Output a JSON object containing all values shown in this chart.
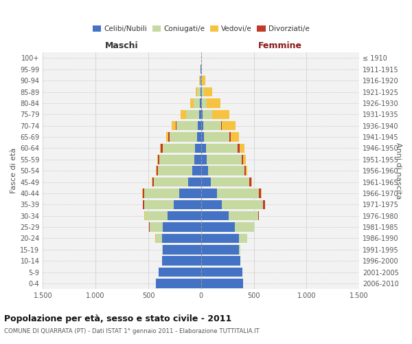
{
  "age_groups": [
    "0-4",
    "5-9",
    "10-14",
    "15-19",
    "20-24",
    "25-29",
    "30-34",
    "35-39",
    "40-44",
    "45-49",
    "50-54",
    "55-59",
    "60-64",
    "65-69",
    "70-74",
    "75-79",
    "80-84",
    "85-89",
    "90-94",
    "95-99",
    "100+"
  ],
  "birth_years": [
    "2006-2010",
    "2001-2005",
    "1996-2000",
    "1991-1995",
    "1986-1990",
    "1981-1985",
    "1976-1980",
    "1971-1975",
    "1966-1970",
    "1961-1965",
    "1956-1960",
    "1951-1955",
    "1946-1950",
    "1941-1945",
    "1936-1940",
    "1931-1935",
    "1926-1930",
    "1921-1925",
    "1916-1920",
    "1911-1915",
    "≤ 1910"
  ],
  "males": {
    "celibi": [
      430,
      400,
      370,
      360,
      370,
      360,
      320,
      260,
      210,
      120,
      80,
      65,
      55,
      40,
      30,
      20,
      10,
      5,
      3,
      2,
      0
    ],
    "coniugati": [
      0,
      0,
      2,
      10,
      60,
      130,
      210,
      280,
      330,
      330,
      330,
      330,
      310,
      260,
      200,
      120,
      60,
      30,
      8,
      2,
      0
    ],
    "vedovi": [
      0,
      0,
      0,
      0,
      1,
      1,
      2,
      2,
      3,
      4,
      5,
      8,
      10,
      20,
      40,
      50,
      30,
      15,
      4,
      0,
      0
    ],
    "divorziati": [
      0,
      0,
      0,
      0,
      1,
      2,
      5,
      12,
      15,
      10,
      10,
      15,
      15,
      10,
      8,
      3,
      2,
      0,
      0,
      0,
      0
    ]
  },
  "females": {
    "nubili": [
      400,
      390,
      370,
      360,
      360,
      320,
      260,
      200,
      150,
      90,
      65,
      55,
      45,
      30,
      20,
      15,
      8,
      5,
      3,
      2,
      0
    ],
    "coniugate": [
      0,
      2,
      5,
      15,
      80,
      180,
      280,
      390,
      400,
      370,
      350,
      330,
      300,
      240,
      170,
      90,
      45,
      20,
      5,
      1,
      0
    ],
    "vedove": [
      0,
      0,
      0,
      0,
      0,
      1,
      2,
      4,
      5,
      8,
      12,
      25,
      45,
      80,
      130,
      160,
      130,
      80,
      30,
      5,
      0
    ],
    "divorziate": [
      0,
      0,
      0,
      0,
      1,
      3,
      8,
      15,
      20,
      15,
      10,
      15,
      20,
      10,
      8,
      3,
      2,
      0,
      0,
      0,
      0
    ]
  },
  "color_celibi": "#4472C4",
  "color_coniugati": "#C5D9A0",
  "color_vedovi": "#F5C242",
  "color_divorziati": "#C0392B",
  "title": "Popolazione per età, sesso e stato civile - 2011",
  "subtitle": "COMUNE DI QUARRATA (PT) - Dati ISTAT 1° gennaio 2011 - Elaborazione TUTTITALIA.IT",
  "xlabel_left": "Maschi",
  "xlabel_right": "Femmine",
  "ylabel_left": "Fasce di età",
  "ylabel_right": "Anni di nascita",
  "bg_color": "#FFFFFF",
  "plot_bg_color": "#F2F2F2",
  "grid_color": "#CCCCCC"
}
